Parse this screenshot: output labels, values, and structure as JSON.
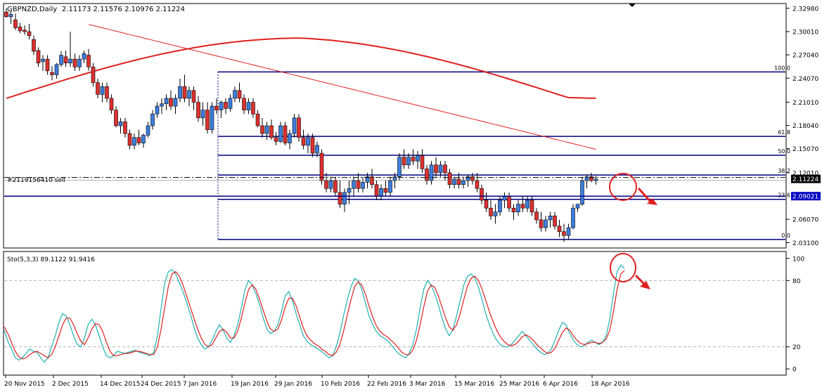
{
  "chart_data": [
    {
      "type": "candlestick",
      "title": "GBPNZD,Daily",
      "ohlc_header": "2.11173 2.11576 2.10976 2.11224",
      "order_label": "#2119156410 sell",
      "current_price": "2.11224",
      "order_price": "2.09021",
      "y_ticks": [
        "2.32980",
        "2.30010",
        "2.27040",
        "2.24070",
        "2.21010",
        "2.18040",
        "2.15070",
        "2.12010",
        "2.09021",
        "2.06070",
        "2.03100"
      ],
      "ylim": [
        2.025,
        2.335
      ],
      "x_ticks": [
        "20 Nov 2015",
        "2 Dec 2015",
        "14 Dec 2015",
        "24 Dec 2015",
        "7 Jan 2016",
        "19 Jan 2016",
        "29 Jan 2016",
        "10 Feb 2016",
        "22 Feb 2016",
        "3 Mar 2016",
        "15 Mar 2016",
        "25 Mar 2016",
        "6 Apr 2016",
        "18 Apr 2016"
      ],
      "fib_levels": [
        {
          "label": "100.0",
          "price": 2.2487
        },
        {
          "label": "61.8",
          "price": 2.1665
        },
        {
          "label": "50.0",
          "price": 2.1424
        },
        {
          "label": "38.2",
          "price": 2.1172
        },
        {
          "label": "23.6",
          "price": 2.0862
        },
        {
          "label": "0.0",
          "price": 2.035
        }
      ],
      "colors": {
        "bull": "#3d7ee0",
        "bear": "#e03030",
        "fib": "#000080",
        "ma": "#e02020",
        "order": "#000080"
      },
      "candles": [
        [
          2.325,
          2.33,
          2.318,
          2.319
        ],
        [
          2.319,
          2.326,
          2.31,
          2.322
        ],
        [
          2.315,
          2.323,
          2.302,
          2.305
        ],
        [
          2.306,
          2.311,
          2.298,
          2.301
        ],
        [
          2.302,
          2.308,
          2.296,
          2.3
        ],
        [
          2.3,
          2.31,
          2.29,
          2.295
        ],
        [
          2.29,
          2.295,
          2.27,
          2.275
        ],
        [
          2.276,
          2.28,
          2.255,
          2.26
        ],
        [
          2.262,
          2.27,
          2.25,
          2.265
        ],
        [
          2.265,
          2.27,
          2.245,
          2.25
        ],
        [
          2.248,
          2.256,
          2.238,
          2.245
        ],
        [
          2.245,
          2.26,
          2.24,
          2.258
        ],
        [
          2.258,
          2.275,
          2.255,
          2.27
        ],
        [
          2.268,
          2.276,
          2.255,
          2.26
        ],
        [
          2.26,
          2.3,
          2.255,
          2.265
        ],
        [
          2.265,
          2.272,
          2.25,
          2.255
        ],
        [
          2.255,
          2.27,
          2.25,
          2.265
        ],
        [
          2.265,
          2.276,
          2.26,
          2.272
        ],
        [
          2.27,
          2.278,
          2.25,
          2.255
        ],
        [
          2.255,
          2.26,
          2.23,
          2.235
        ],
        [
          2.235,
          2.24,
          2.215,
          2.22
        ],
        [
          2.22,
          2.235,
          2.21,
          2.23
        ],
        [
          2.23,
          2.235,
          2.21,
          2.215
        ],
        [
          2.215,
          2.22,
          2.195,
          2.2
        ],
        [
          2.2,
          2.205,
          2.178,
          2.18
        ],
        [
          2.18,
          2.19,
          2.17,
          2.185
        ],
        [
          2.185,
          2.19,
          2.165,
          2.17
        ],
        [
          2.17,
          2.175,
          2.15,
          2.155
        ],
        [
          2.155,
          2.17,
          2.15,
          2.165
        ],
        [
          2.165,
          2.175,
          2.155,
          2.158
        ],
        [
          2.158,
          2.17,
          2.152,
          2.168
        ],
        [
          2.168,
          2.185,
          2.165,
          2.18
        ],
        [
          2.18,
          2.2,
          2.175,
          2.195
        ],
        [
          2.195,
          2.21,
          2.19,
          2.205
        ],
        [
          2.205,
          2.215,
          2.195,
          2.208
        ],
        [
          2.208,
          2.22,
          2.2,
          2.215
        ],
        [
          2.215,
          2.225,
          2.2,
          2.205
        ],
        [
          2.205,
          2.22,
          2.195,
          2.215
        ],
        [
          2.215,
          2.24,
          2.21,
          2.23
        ],
        [
          2.23,
          2.245,
          2.21,
          2.215
        ],
        [
          2.215,
          2.23,
          2.205,
          2.225
        ],
        [
          2.225,
          2.23,
          2.2,
          2.21
        ],
        [
          2.21,
          2.218,
          2.185,
          2.19
        ],
        [
          2.19,
          2.21,
          2.18,
          2.2
        ],
        [
          2.2,
          2.21,
          2.17,
          2.175
        ],
        [
          2.175,
          2.21,
          2.17,
          2.205
        ],
        [
          2.205,
          2.215,
          2.195,
          2.2
        ],
        [
          2.2,
          2.212,
          2.19,
          2.21
        ],
        [
          2.21,
          2.215,
          2.195,
          2.202
        ],
        [
          2.202,
          2.22,
          2.198,
          2.215
        ],
        [
          2.215,
          2.23,
          2.21,
          2.225
        ],
        [
          2.225,
          2.235,
          2.21,
          2.215
        ],
        [
          2.215,
          2.22,
          2.195,
          2.2
        ],
        [
          2.2,
          2.215,
          2.195,
          2.21
        ],
        [
          2.21,
          2.215,
          2.19,
          2.195
        ],
        [
          2.195,
          2.2,
          2.178,
          2.18
        ],
        [
          2.18,
          2.19,
          2.165,
          2.17
        ],
        [
          2.17,
          2.185,
          2.162,
          2.18
        ],
        [
          2.18,
          2.188,
          2.162,
          2.165
        ],
        [
          2.165,
          2.172,
          2.155,
          2.16
        ],
        [
          2.16,
          2.185,
          2.158,
          2.18
        ],
        [
          2.18,
          2.185,
          2.155,
          2.158
        ],
        [
          2.158,
          2.175,
          2.15,
          2.17
        ],
        [
          2.17,
          2.195,
          2.165,
          2.19
        ],
        [
          2.19,
          2.195,
          2.16,
          2.165
        ],
        [
          2.165,
          2.175,
          2.15,
          2.155
        ],
        [
          2.155,
          2.17,
          2.145,
          2.165
        ],
        [
          2.165,
          2.17,
          2.14,
          2.145
        ],
        [
          2.145,
          2.16,
          2.14,
          2.155
        ],
        [
          2.145,
          2.15,
          2.105,
          2.11
        ],
        [
          2.11,
          2.12,
          2.095,
          2.1
        ],
        [
          2.1,
          2.115,
          2.095,
          2.11
        ],
        [
          2.11,
          2.115,
          2.09,
          2.095
        ],
        [
          2.095,
          2.11,
          2.075,
          2.08
        ],
        [
          2.08,
          2.1,
          2.07,
          2.095
        ],
        [
          2.095,
          2.11,
          2.08,
          2.1
        ],
        [
          2.1,
          2.115,
          2.09,
          2.11
        ],
        [
          2.11,
          2.12,
          2.095,
          2.1
        ],
        [
          2.1,
          2.115,
          2.095,
          2.108
        ],
        [
          2.108,
          2.12,
          2.1,
          2.115
        ],
        [
          2.115,
          2.125,
          2.1,
          2.105
        ],
        [
          2.105,
          2.11,
          2.085,
          2.09
        ],
        [
          2.09,
          2.105,
          2.085,
          2.1
        ],
        [
          2.1,
          2.11,
          2.09,
          2.095
        ],
        [
          2.095,
          2.115,
          2.09,
          2.11
        ],
        [
          2.11,
          2.12,
          2.1,
          2.115
        ],
        [
          2.115,
          2.145,
          2.11,
          2.14
        ],
        [
          2.14,
          2.15,
          2.125,
          2.13
        ],
        [
          2.13,
          2.145,
          2.125,
          2.14
        ],
        [
          2.14,
          2.15,
          2.13,
          2.135
        ],
        [
          2.135,
          2.148,
          2.125,
          2.142
        ],
        [
          2.142,
          2.15,
          2.12,
          2.125
        ],
        [
          2.125,
          2.13,
          2.105,
          2.11
        ],
        [
          2.11,
          2.135,
          2.105,
          2.13
        ],
        [
          2.13,
          2.14,
          2.115,
          2.12
        ],
        [
          2.12,
          2.135,
          2.115,
          2.13
        ],
        [
          2.13,
          2.135,
          2.11,
          2.12
        ],
        [
          2.12,
          2.125,
          2.1,
          2.105
        ],
        [
          2.105,
          2.115,
          2.1,
          2.112
        ],
        [
          2.112,
          2.12,
          2.1,
          2.105
        ],
        [
          2.105,
          2.115,
          2.1,
          2.11
        ],
        [
          2.11,
          2.118,
          2.102,
          2.115
        ],
        [
          2.115,
          2.12,
          2.105,
          2.11
        ],
        [
          2.11,
          2.12,
          2.095,
          2.1
        ],
        [
          2.1,
          2.105,
          2.08,
          2.085
        ],
        [
          2.085,
          2.095,
          2.07,
          2.075
        ],
        [
          2.075,
          2.085,
          2.06,
          2.065
        ],
        [
          2.065,
          2.08,
          2.055,
          2.07
        ],
        [
          2.07,
          2.09,
          2.065,
          2.085
        ],
        [
          2.085,
          2.095,
          2.075,
          2.09
        ],
        [
          2.09,
          2.095,
          2.07,
          2.075
        ],
        [
          2.075,
          2.08,
          2.06,
          2.07
        ],
        [
          2.07,
          2.085,
          2.065,
          2.08
        ],
        [
          2.08,
          2.09,
          2.07,
          2.075
        ],
        [
          2.075,
          2.09,
          2.07,
          2.085
        ],
        [
          2.085,
          2.09,
          2.065,
          2.07
        ],
        [
          2.07,
          2.075,
          2.055,
          2.06
        ],
        [
          2.06,
          2.07,
          2.045,
          2.05
        ],
        [
          2.05,
          2.065,
          2.045,
          2.06
        ],
        [
          2.06,
          2.07,
          2.05,
          2.065
        ],
        [
          2.065,
          2.07,
          2.048,
          2.052
        ],
        [
          2.052,
          2.06,
          2.038,
          2.045
        ],
        [
          2.045,
          2.055,
          2.032,
          2.04
        ],
        [
          2.04,
          2.055,
          2.035,
          2.05
        ],
        [
          2.05,
          2.08,
          2.048,
          2.075
        ],
        [
          2.075,
          2.08,
          2.07,
          2.08
        ],
        [
          2.08,
          2.115,
          2.078,
          2.11
        ],
        [
          2.11,
          2.118,
          2.1,
          2.115
        ],
        [
          2.115,
          2.12,
          2.108,
          2.11
        ],
        [
          2.11,
          2.116,
          2.105,
          2.112
        ]
      ]
    },
    {
      "type": "line",
      "title": "Sto(5,3,3) 89.1122 91.9416",
      "ylim": [
        -5,
        105
      ],
      "y_ticks": [
        "100",
        "80",
        "20",
        "0"
      ],
      "levels": [
        80,
        20
      ],
      "series": [
        {
          "color": "#20b0b0",
          "values": [
            35,
            25,
            18,
            10,
            8,
            10,
            14,
            18,
            16,
            15,
            10,
            6,
            10,
            20,
            30,
            42,
            50,
            48,
            40,
            30,
            22,
            20,
            28,
            40,
            45,
            40,
            30,
            20,
            12,
            10,
            12,
            16,
            15,
            14,
            15,
            16,
            17,
            15,
            14,
            13,
            12,
            15,
            30,
            55,
            78,
            88,
            90,
            86,
            78,
            70,
            60,
            50,
            38,
            28,
            22,
            18,
            20,
            26,
            34,
            40,
            35,
            28,
            24,
            30,
            40,
            55,
            72,
            80,
            76,
            68,
            58,
            46,
            36,
            32,
            34,
            40,
            52,
            66,
            70,
            62,
            50,
            40,
            30,
            25,
            22,
            20,
            18,
            16,
            13,
            10,
            12,
            20,
            32,
            48,
            62,
            74,
            82,
            80,
            72,
            60,
            48,
            40,
            34,
            30,
            28,
            26,
            22,
            18,
            14,
            12,
            10,
            14,
            22,
            36,
            55,
            72,
            80,
            76,
            68,
            58,
            46,
            36,
            30,
            36,
            48,
            62,
            76,
            84,
            86,
            82,
            74,
            62,
            50,
            40,
            32,
            26,
            22,
            20,
            20,
            22,
            26,
            30,
            34,
            30,
            26,
            22,
            18,
            15,
            13,
            14,
            18,
            26,
            35,
            42,
            40,
            32,
            26,
            22,
            20,
            21,
            24,
            26,
            24,
            22,
            24,
            30,
            45,
            68,
            88,
            94,
            91
          ]
        },
        {
          "color": "#e02020",
          "values": [
            38,
            32,
            24,
            16,
            11,
            9,
            10,
            13,
            15,
            16,
            14,
            12,
            10,
            13,
            20,
            30,
            40,
            46,
            46,
            40,
            32,
            25,
            22,
            28,
            36,
            41,
            40,
            34,
            24,
            16,
            12,
            12,
            13,
            14,
            14,
            15,
            16,
            16,
            15,
            14,
            13,
            13,
            20,
            36,
            56,
            75,
            86,
            88,
            84,
            76,
            66,
            56,
            46,
            36,
            28,
            22,
            20,
            22,
            28,
            34,
            36,
            33,
            28,
            28,
            34,
            46,
            60,
            72,
            76,
            72,
            63,
            53,
            43,
            36,
            34,
            36,
            44,
            56,
            64,
            64,
            57,
            47,
            37,
            30,
            26,
            23,
            21,
            18,
            16,
            13,
            12,
            15,
            22,
            34,
            48,
            62,
            74,
            79,
            76,
            68,
            57,
            47,
            39,
            34,
            31,
            29,
            26,
            23,
            19,
            15,
            13,
            13,
            17,
            26,
            40,
            56,
            70,
            76,
            74,
            66,
            56,
            46,
            38,
            35,
            40,
            50,
            63,
            75,
            82,
            84,
            80,
            72,
            62,
            52,
            43,
            35,
            29,
            25,
            22,
            21,
            22,
            25,
            29,
            31,
            29,
            26,
            22,
            19,
            16,
            14,
            15,
            19,
            26,
            33,
            37,
            35,
            30,
            26,
            23,
            22,
            23,
            24,
            24,
            23,
            24,
            27,
            35,
            52,
            72,
            86,
            89
          ]
        }
      ]
    }
  ]
}
